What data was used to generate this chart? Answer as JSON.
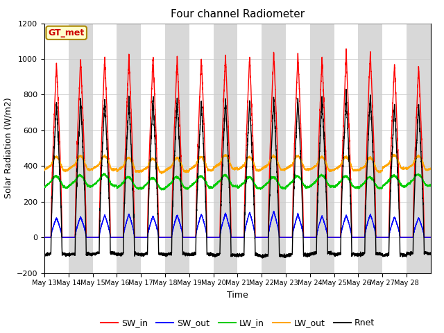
{
  "title": "Four channel Radiometer",
  "xlabel": "Time",
  "ylabel": "Solar Radiation (W/m2)",
  "ylim": [
    -200,
    1200
  ],
  "background_color": "#ffffff",
  "plot_bg_color": "#e8e8e8",
  "station_label": "GT_met",
  "x_tick_labels": [
    "May 13",
    "May 14",
    "May 15",
    "May 16",
    "May 17",
    "May 18",
    "May 19",
    "May 20",
    "May 21",
    "May 22",
    "May 23",
    "May 24",
    "May 25",
    "May 26",
    "May 27",
    "May 28"
  ],
  "series": {
    "SW_in": {
      "color": "#ff0000",
      "lw": 1.0
    },
    "SW_out": {
      "color": "#0000ff",
      "lw": 1.0
    },
    "LW_in": {
      "color": "#00cc00",
      "lw": 1.0
    },
    "LW_out": {
      "color": "#ffa500",
      "lw": 1.0
    },
    "Rnet": {
      "color": "#000000",
      "lw": 1.0
    }
  },
  "legend": {
    "SW_in": {
      "color": "#ff0000",
      "label": "SW_in"
    },
    "SW_out": {
      "color": "#0000ff",
      "label": "SW_out"
    },
    "LW_in": {
      "color": "#00cc00",
      "label": "LW_in"
    },
    "LW_out": {
      "color": "#ffa500",
      "label": "LW_out"
    },
    "Rnet": {
      "color": "#000000",
      "label": "Rnet"
    }
  },
  "n_days": 16,
  "day_start": 13,
  "pts_per_day": 288
}
